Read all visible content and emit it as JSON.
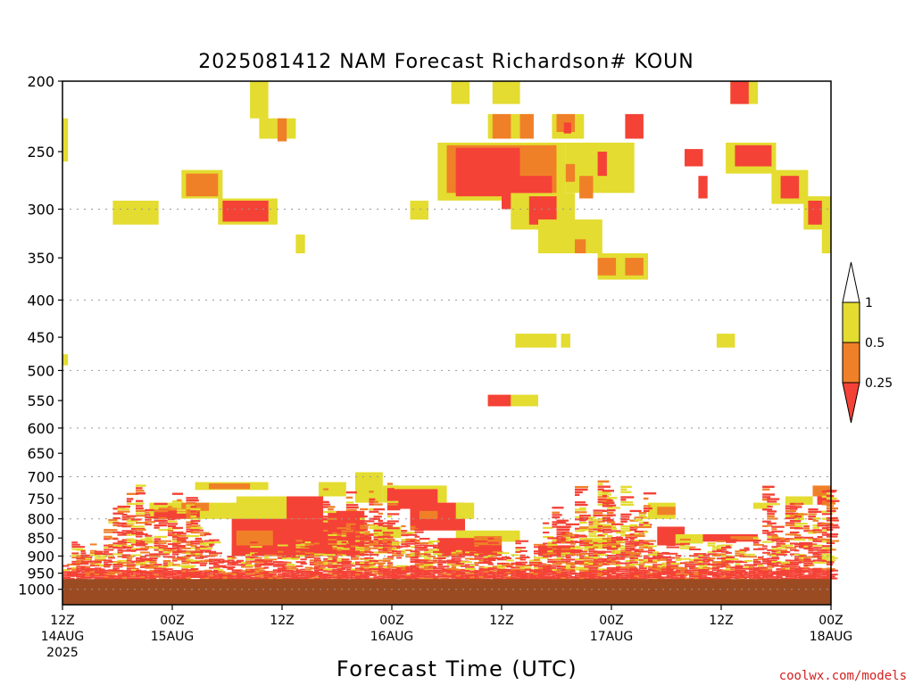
{
  "title": "2025081412 NAM Forecast Richardson# KOUN",
  "credit": "coolwx.com/models",
  "colors": {
    "ri_lt_025": "#f44236",
    "ri_025_05": "#f08028",
    "ri_05_1": "#e4dc30",
    "ground": "#9a4b22",
    "grid": "#999999"
  },
  "chart_data": {
    "type": "heatmap",
    "variable": "Richardson Number",
    "xlabel": "Forecast Time (UTC)",
    "ylabel": "",
    "x_unit": "hours from 2025-08-14 12Z",
    "xlim": [
      0,
      84
    ],
    "y_scale": "log-pressure (hPa)",
    "ylim": [
      1050,
      200
    ],
    "y_ticks": [
      200,
      250,
      300,
      350,
      400,
      450,
      500,
      550,
      600,
      650,
      700,
      750,
      800,
      850,
      900,
      950,
      1000
    ],
    "y_grid": [
      300,
      400,
      500,
      600,
      700,
      800,
      900,
      1000
    ],
    "x_ticks": [
      {
        "hour": 0,
        "lines": [
          "12Z",
          "14AUG",
          "2025"
        ]
      },
      {
        "hour": 12,
        "lines": [
          "00Z",
          "15AUG"
        ]
      },
      {
        "hour": 24,
        "lines": [
          "12Z"
        ]
      },
      {
        "hour": 36,
        "lines": [
          "00Z",
          "16AUG"
        ]
      },
      {
        "hour": 48,
        "lines": [
          "12Z"
        ]
      },
      {
        "hour": 60,
        "lines": [
          "00Z",
          "17AUG"
        ]
      },
      {
        "hour": 72,
        "lines": [
          "12Z"
        ]
      },
      {
        "hour": 84,
        "lines": [
          "00Z",
          "18AUG"
        ]
      }
    ],
    "legend": {
      "position": "right",
      "labels": [
        "1",
        "0.5",
        "0.25"
      ],
      "bins": [
        {
          "range": "< 0.25",
          "color": "#f44236"
        },
        {
          "range": "0.25-0.5",
          "color": "#f08028"
        },
        {
          "range": "0.5-1",
          "color": "#e4dc30"
        },
        {
          "range": "> 1",
          "color": "#ffffff"
        }
      ]
    },
    "ground_level_hPa": 968,
    "cells": [
      {
        "c": "Y",
        "t0": 20.5,
        "t1": 22.5,
        "p0": 200,
        "p1": 225
      },
      {
        "c": "Y",
        "t0": 21.5,
        "t1": 25.5,
        "p0": 225,
        "p1": 240
      },
      {
        "c": "O",
        "t0": 23.5,
        "t1": 24.5,
        "p0": 225,
        "p1": 242
      },
      {
        "c": "Y",
        "t0": 42.5,
        "t1": 44.5,
        "p0": 200,
        "p1": 215
      },
      {
        "c": "Y",
        "t0": 47,
        "t1": 50,
        "p0": 200,
        "p1": 215
      },
      {
        "c": "Y",
        "t0": 46.5,
        "t1": 51.5,
        "p0": 222,
        "p1": 240
      },
      {
        "c": "O",
        "t0": 47,
        "t1": 49,
        "p0": 222,
        "p1": 240
      },
      {
        "c": "O",
        "t0": 50,
        "t1": 51.5,
        "p0": 222,
        "p1": 240
      },
      {
        "c": "Y",
        "t0": 53.5,
        "t1": 57,
        "p0": 222,
        "p1": 240
      },
      {
        "c": "O",
        "t0": 54,
        "t1": 56,
        "p0": 222,
        "p1": 235
      },
      {
        "c": "R",
        "t0": 54.8,
        "t1": 55.6,
        "p0": 228,
        "p1": 236
      },
      {
        "c": "R",
        "t0": 61.5,
        "t1": 63.5,
        "p0": 222,
        "p1": 240
      },
      {
        "c": "Y",
        "t0": 41,
        "t1": 55,
        "p0": 243,
        "p1": 292
      },
      {
        "c": "Y",
        "t0": 55,
        "t1": 62.5,
        "p0": 243,
        "p1": 285
      },
      {
        "c": "O",
        "t0": 42,
        "t1": 54,
        "p0": 245,
        "p1": 285
      },
      {
        "c": "R",
        "t0": 43,
        "t1": 50,
        "p0": 247,
        "p1": 288
      },
      {
        "c": "R",
        "t0": 48,
        "t1": 53.5,
        "p0": 270,
        "p1": 300
      },
      {
        "c": "O",
        "t0": 50.5,
        "t1": 53,
        "p0": 292,
        "p1": 310
      },
      {
        "c": "Y",
        "t0": 49,
        "t1": 56,
        "p0": 285,
        "p1": 320
      },
      {
        "c": "R",
        "t0": 51,
        "t1": 54,
        "p0": 288,
        "p1": 315
      },
      {
        "c": "Y",
        "t0": 52,
        "t1": 59,
        "p0": 310,
        "p1": 345
      },
      {
        "c": "O",
        "t0": 56,
        "t1": 57.2,
        "p0": 330,
        "p1": 345
      },
      {
        "c": "O",
        "t0": 55,
        "t1": 56,
        "p0": 260,
        "p1": 275
      },
      {
        "c": "O",
        "t0": 56.5,
        "t1": 58,
        "p0": 270,
        "p1": 290
      },
      {
        "c": "R",
        "t0": 58.5,
        "t1": 59.5,
        "p0": 250,
        "p1": 270
      },
      {
        "c": "R",
        "t0": 68,
        "t1": 70,
        "p0": 248,
        "p1": 262
      },
      {
        "c": "Y",
        "t0": 58.5,
        "t1": 64,
        "p0": 345,
        "p1": 375
      },
      {
        "c": "O",
        "t0": 58.5,
        "t1": 60.5,
        "p0": 350,
        "p1": 370
      },
      {
        "c": "O",
        "t0": 61.5,
        "t1": 63.5,
        "p0": 350,
        "p1": 370
      },
      {
        "c": "Y",
        "t0": 73,
        "t1": 76,
        "p0": 200,
        "p1": 215
      },
      {
        "c": "R",
        "t0": 73,
        "t1": 75,
        "p0": 200,
        "p1": 215
      },
      {
        "c": "Y",
        "t0": 72.5,
        "t1": 78,
        "p0": 243,
        "p1": 268
      },
      {
        "c": "R",
        "t0": 73.5,
        "t1": 77.5,
        "p0": 245,
        "p1": 262
      },
      {
        "c": "Y",
        "t0": 77.5,
        "t1": 81.5,
        "p0": 265,
        "p1": 295
      },
      {
        "c": "R",
        "t0": 78.5,
        "t1": 80.5,
        "p0": 270,
        "p1": 290
      },
      {
        "c": "R",
        "t0": 69.5,
        "t1": 70.5,
        "p0": 270,
        "p1": 290
      },
      {
        "c": "Y",
        "t0": 81,
        "t1": 84,
        "p0": 288,
        "p1": 320
      },
      {
        "c": "R",
        "t0": 81.5,
        "t1": 83,
        "p0": 292,
        "p1": 315
      },
      {
        "c": "Y",
        "t0": 83,
        "t1": 84,
        "p0": 320,
        "p1": 345
      },
      {
        "c": "Y",
        "t0": 13,
        "t1": 17.5,
        "p0": 265,
        "p1": 290
      },
      {
        "c": "O",
        "t0": 13.5,
        "t1": 17,
        "p0": 268,
        "p1": 288
      },
      {
        "c": "Y",
        "t0": 17,
        "t1": 23.5,
        "p0": 290,
        "p1": 315
      },
      {
        "c": "R",
        "t0": 17.5,
        "t1": 22.5,
        "p0": 292,
        "p1": 312
      },
      {
        "c": "Y",
        "t0": 5.5,
        "t1": 10.5,
        "p0": 292,
        "p1": 315
      },
      {
        "c": "Y",
        "t0": 38,
        "t1": 40,
        "p0": 292,
        "p1": 310
      },
      {
        "c": "Y",
        "t0": 25.5,
        "t1": 26.5,
        "p0": 325,
        "p1": 345
      },
      {
        "c": "Y",
        "t0": 0,
        "t1": 0.6,
        "p0": 225,
        "p1": 258
      },
      {
        "c": "Y",
        "t0": 0,
        "t1": 0.6,
        "p0": 475,
        "p1": 492
      },
      {
        "c": "Y",
        "t0": 49.5,
        "t1": 54,
        "p0": 445,
        "p1": 465
      },
      {
        "c": "Y",
        "t0": 54.5,
        "t1": 55.5,
        "p0": 445,
        "p1": 465
      },
      {
        "c": "Y",
        "t0": 71.5,
        "t1": 73.5,
        "p0": 445,
        "p1": 465
      },
      {
        "c": "Y",
        "t0": 46.5,
        "t1": 52,
        "p0": 540,
        "p1": 560
      },
      {
        "c": "R",
        "t0": 46.5,
        "t1": 49,
        "p0": 540,
        "p1": 560
      },
      {
        "c": "Y",
        "t0": 14.5,
        "t1": 22.5,
        "p0": 712,
        "p1": 730
      },
      {
        "c": "O",
        "t0": 16,
        "t1": 20.5,
        "p0": 715,
        "p1": 728
      },
      {
        "c": "Y",
        "t0": 28,
        "t1": 31,
        "p0": 712,
        "p1": 745
      },
      {
        "c": "Y",
        "t0": 32,
        "t1": 35,
        "p0": 690,
        "p1": 760
      },
      {
        "c": "Y",
        "t0": 35,
        "t1": 42,
        "p0": 720,
        "p1": 760
      },
      {
        "c": "R",
        "t0": 35.5,
        "t1": 41,
        "p0": 728,
        "p1": 775
      },
      {
        "c": "Y",
        "t0": 9.5,
        "t1": 24,
        "p0": 760,
        "p1": 800
      },
      {
        "c": "R",
        "t0": 10,
        "t1": 15,
        "p0": 775,
        "p1": 800
      },
      {
        "c": "O",
        "t0": 13,
        "t1": 16,
        "p0": 760,
        "p1": 780
      },
      {
        "c": "Y",
        "t0": 19,
        "t1": 27,
        "p0": 745,
        "p1": 800
      },
      {
        "c": "R",
        "t0": 24.5,
        "t1": 28.5,
        "p0": 745,
        "p1": 800
      },
      {
        "c": "R",
        "t0": 18.5,
        "t1": 33,
        "p0": 800,
        "p1": 900
      },
      {
        "c": "O",
        "t0": 19,
        "t1": 23,
        "p0": 830,
        "p1": 870
      },
      {
        "c": "R",
        "t0": 38,
        "t1": 44,
        "p0": 760,
        "p1": 830
      },
      {
        "c": "O",
        "t0": 39,
        "t1": 41,
        "p0": 780,
        "p1": 800
      },
      {
        "c": "Y",
        "t0": 43,
        "t1": 45,
        "p0": 760,
        "p1": 800
      },
      {
        "c": "Y",
        "t0": 43,
        "t1": 50,
        "p0": 830,
        "p1": 860
      },
      {
        "c": "R",
        "t0": 41,
        "t1": 48,
        "p0": 850,
        "p1": 900
      },
      {
        "c": "O",
        "t0": 45,
        "t1": 48,
        "p0": 845,
        "p1": 870
      },
      {
        "c": "Y",
        "t0": 34,
        "t1": 37,
        "p0": 820,
        "p1": 850
      },
      {
        "c": "R",
        "t0": 29,
        "t1": 33,
        "p0": 780,
        "p1": 820
      },
      {
        "c": "Y",
        "t0": 64,
        "t1": 67,
        "p0": 760,
        "p1": 800
      },
      {
        "c": "O",
        "t0": 65,
        "t1": 67,
        "p0": 770,
        "p1": 790
      },
      {
        "c": "R",
        "t0": 65,
        "t1": 68,
        "p0": 820,
        "p1": 870
      },
      {
        "c": "Y",
        "t0": 67,
        "t1": 70,
        "p0": 840,
        "p1": 865
      },
      {
        "c": "R",
        "t0": 70,
        "t1": 76,
        "p0": 840,
        "p1": 860
      },
      {
        "c": "O",
        "t0": 73,
        "t1": 76,
        "p0": 845,
        "p1": 855
      },
      {
        "c": "Y",
        "t0": 75.5,
        "t1": 77,
        "p0": 760,
        "p1": 775
      },
      {
        "c": "Y",
        "t0": 79,
        "t1": 82,
        "p0": 745,
        "p1": 765
      },
      {
        "c": "O",
        "t0": 82,
        "t1": 84,
        "p0": 720,
        "p1": 745
      },
      {
        "c": "R",
        "t0": 82.5,
        "t1": 84,
        "p0": 745,
        "p1": 765
      },
      {
        "c": "Y",
        "t0": 79,
        "t1": 81,
        "p0": 785,
        "p1": 800
      },
      {
        "c": "Y",
        "t0": 57,
        "t1": 61,
        "p0": 850,
        "p1": 880
      },
      {
        "c": "R",
        "t0": 52,
        "t1": 56,
        "p0": 870,
        "p1": 900
      }
    ]
  }
}
